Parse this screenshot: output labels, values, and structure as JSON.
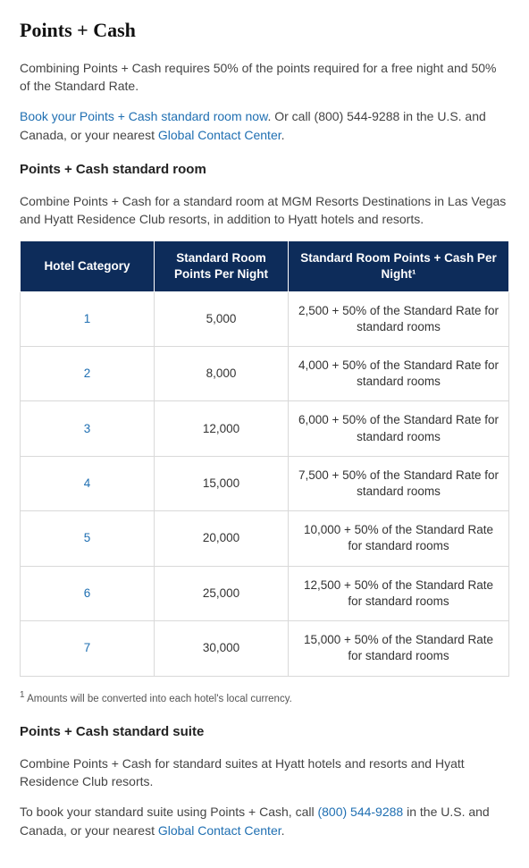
{
  "page_title": "Points + Cash",
  "intro": "Combining Points + Cash requires 50% of the points required for a free night and 50% of the Standard Rate.",
  "book_para": {
    "link1_text": "Book your Points + Cash standard room now",
    "middle_text": ". Or call (800) 544-9288 in the U.S. and Canada, or your nearest ",
    "link2_text": "Global Contact Center",
    "end_text": "."
  },
  "section1_heading": "Points + Cash standard room",
  "section1_intro": "Combine Points + Cash for a standard room at MGM Resorts Destinations in Las Vegas and Hyatt Residence Club resorts, in addition to Hyatt hotels and resorts.",
  "table": {
    "header_bg": "#0d2c5a",
    "header_text_color": "#ffffff",
    "row_border_color": "#d9d9d9",
    "col_widths": [
      "150px",
      "150px",
      "auto"
    ],
    "columns": [
      "Hotel Category",
      "Standard Room Points Per Night",
      "Standard Room Points + Cash Per Night¹"
    ],
    "rows": [
      {
        "category": "1",
        "points": "5,000",
        "points_cash": "2,500 + 50% of the Standard Rate for standard rooms"
      },
      {
        "category": "2",
        "points": "8,000",
        "points_cash": "4,000 + 50% of the Standard Rate for standard rooms"
      },
      {
        "category": "3",
        "points": "12,000",
        "points_cash": "6,000 + 50% of the Standard Rate for standard rooms"
      },
      {
        "category": "4",
        "points": "15,000",
        "points_cash": "7,500 + 50% of the Standard Rate for standard rooms"
      },
      {
        "category": "5",
        "points": "20,000",
        "points_cash": "10,000 + 50% of the Standard Rate for standard rooms"
      },
      {
        "category": "6",
        "points": "25,000",
        "points_cash": "12,500 + 50% of the Standard Rate for standard rooms"
      },
      {
        "category": "7",
        "points": "30,000",
        "points_cash": "15,000 + 50% of the Standard Rate for standard rooms"
      }
    ]
  },
  "footnote": "Amounts will be converted into each hotel's local currency.",
  "footnote_marker": "1",
  "section2_heading": "Points + Cash standard suite",
  "section2_intro": "Combine Points + Cash for standard suites at Hyatt hotels and resorts and Hyatt Residence Club resorts.",
  "suite_para": {
    "before": "To book your standard suite using Points + Cash, call ",
    "phone_text": "(800) 544-9288",
    "middle": " in the U.S. and Canada, or your nearest ",
    "link_text": "Global Contact Center",
    "end": "."
  },
  "link_color": "#1f6fb2"
}
